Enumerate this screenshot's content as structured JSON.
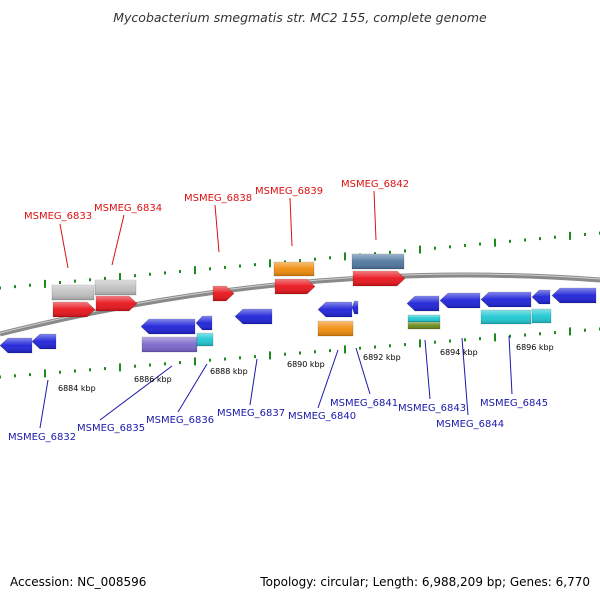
{
  "title": "Mycobacterium smegmatis str. MC2 155, complete genome",
  "footer": {
    "accession": "Accession: NC_008596",
    "topology": "Topology: circular; Length: 6,988,209 bp; Genes: 6,770"
  },
  "colors": {
    "backbone": "#8a8a8a",
    "ticks": "#1d8a1d",
    "label_upper": "#dd1111",
    "label_lower": "#1a1aaa",
    "gene_red": "#e8141a",
    "gene_grey": "#c0c0c0",
    "gene_orange": "#f08c0c",
    "gene_steel": "#5078a0",
    "gene_blue": "#1e22d8",
    "gene_purple": "#7a66cc",
    "gene_cyan": "#1ec8d2",
    "gene_olive": "#6a8a1a"
  },
  "scale_labels": [
    "6884 kbp",
    "6886 kbp",
    "6888 kbp",
    "6890 kbp",
    "6892 kbp",
    "6894 kbp",
    "6896 kbp"
  ],
  "upper_labels": [
    "MSMEG_6833",
    "MSMEG_6834",
    "MSMEG_6838",
    "MSMEG_6839",
    "MSMEG_6842"
  ],
  "lower_labels": [
    "MSMEG_6832",
    "MSMEG_6835",
    "MSMEG_6836",
    "MSMEG_6837",
    "MSMEG_6840",
    "MSMEG_6841",
    "MSMEG_6843",
    "MSMEG_6844",
    "MSMEG_6845"
  ]
}
